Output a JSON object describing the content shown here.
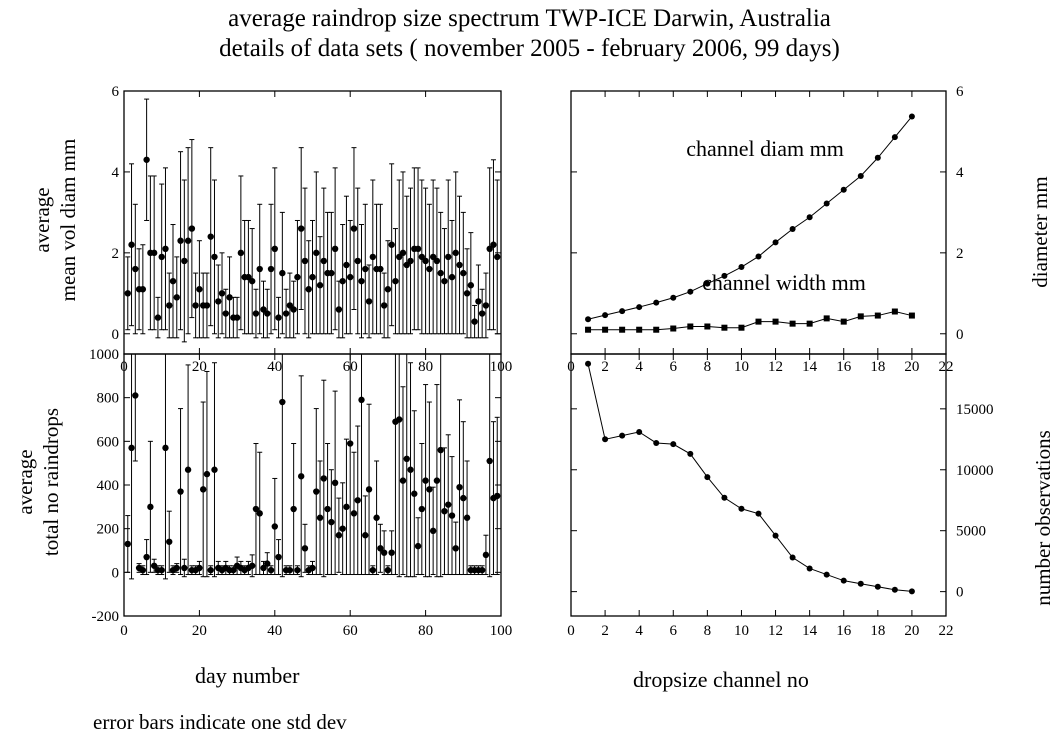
{
  "title_line1": "average raindrop size spectrum TWP-ICE Darwin, Australia",
  "title_line2": "details of data sets ( november 2005 - february 2006, 99 days)",
  "footnote": "error bars indicate one std dev",
  "chart_data": [
    {
      "type": "scatter",
      "panel": "top-left",
      "ylabel_line1": "average",
      "ylabel_line2": "mean vol diam mm",
      "xlim": [
        0,
        100
      ],
      "ylim": [
        -0.5,
        6
      ],
      "xticks": [
        0,
        20,
        40,
        60,
        80,
        100
      ],
      "yticks": [
        0,
        2,
        4,
        6
      ],
      "error_bars": true,
      "x": [
        1,
        2,
        3,
        4,
        5,
        6,
        7,
        8,
        9,
        10,
        11,
        12,
        13,
        14,
        15,
        16,
        17,
        18,
        19,
        20,
        21,
        22,
        23,
        24,
        25,
        26,
        27,
        28,
        29,
        30,
        31,
        32,
        33,
        34,
        35,
        36,
        37,
        38,
        39,
        40,
        41,
        42,
        43,
        44,
        45,
        46,
        47,
        48,
        49,
        50,
        51,
        52,
        53,
        54,
        55,
        56,
        57,
        58,
        59,
        60,
        61,
        62,
        63,
        64,
        65,
        66,
        67,
        68,
        69,
        70,
        71,
        72,
        73,
        74,
        75,
        76,
        77,
        78,
        79,
        80,
        81,
        82,
        83,
        84,
        85,
        86,
        87,
        88,
        89,
        90,
        91,
        92,
        93,
        94,
        95,
        96,
        97,
        98,
        99
      ],
      "y": [
        1.0,
        2.2,
        1.6,
        1.1,
        1.1,
        4.3,
        2.0,
        2.0,
        0.4,
        1.9,
        2.1,
        0.7,
        1.3,
        0.9,
        2.3,
        1.8,
        2.3,
        2.6,
        0.7,
        1.1,
        0.7,
        0.7,
        2.4,
        1.9,
        0.8,
        1.0,
        0.5,
        0.9,
        0.4,
        0.4,
        2.0,
        1.4,
        1.4,
        1.3,
        0.5,
        1.6,
        0.6,
        0.5,
        1.6,
        2.1,
        0.4,
        1.5,
        0.5,
        0.7,
        0.6,
        1.4,
        2.6,
        1.8,
        1.1,
        1.4,
        2.0,
        1.2,
        1.8,
        1.5,
        1.5,
        2.1,
        0.6,
        1.3,
        1.7,
        1.4,
        2.6,
        1.8,
        1.3,
        1.6,
        0.8,
        1.9,
        1.6,
        1.6,
        0.7,
        1.1,
        2.2,
        1.3,
        1.9,
        2.0,
        1.7,
        1.8,
        2.1,
        2.1,
        1.9,
        1.8,
        1.6,
        1.9,
        1.8,
        1.5,
        1.3,
        1.9,
        1.4,
        2.0,
        1.7,
        1.5,
        1.0,
        1.2,
        0.3,
        0.8,
        0.5,
        0.7,
        2.1,
        2.2,
        1.9
      ],
      "err": [
        0.9,
        2.0,
        1.6,
        1.0,
        1.1,
        1.5,
        1.9,
        1.9,
        0.5,
        1.8,
        2.0,
        0.8,
        1.4,
        1.0,
        2.2,
        2.0,
        2.3,
        2.2,
        0.8,
        1.2,
        0.8,
        0.8,
        2.2,
        1.9,
        0.9,
        1.0,
        0.6,
        1.0,
        0.5,
        0.5,
        1.9,
        1.4,
        1.4,
        1.3,
        0.6,
        1.6,
        0.7,
        0.6,
        1.6,
        2.0,
        0.5,
        1.5,
        0.6,
        0.8,
        0.7,
        1.4,
        2.0,
        1.8,
        1.2,
        1.4,
        2.0,
        1.2,
        1.8,
        1.5,
        1.5,
        2.0,
        0.7,
        1.4,
        1.7,
        1.4,
        2.0,
        1.8,
        1.4,
        1.6,
        0.9,
        1.9,
        1.6,
        1.6,
        0.8,
        1.2,
        2.0,
        1.3,
        1.9,
        2.0,
        1.7,
        1.8,
        2.0,
        2.0,
        1.9,
        1.8,
        1.6,
        1.9,
        1.8,
        1.5,
        1.3,
        1.9,
        1.4,
        2.0,
        1.7,
        1.5,
        1.1,
        1.3,
        0.4,
        0.9,
        0.6,
        0.8,
        2.0,
        2.1,
        1.9
      ]
    },
    {
      "type": "scatter",
      "panel": "bottom-left",
      "xlabel": "day number",
      "ylabel_line1": "average",
      "ylabel_line2": "total no  raindrops",
      "xlim": [
        0,
        100
      ],
      "ylim": [
        -200,
        1000
      ],
      "xticks": [
        0,
        20,
        40,
        60,
        80,
        100
      ],
      "yticks": [
        -200,
        0,
        200,
        400,
        600,
        800,
        1000
      ],
      "error_bars": true,
      "x": [
        1,
        2,
        3,
        4,
        5,
        6,
        7,
        8,
        9,
        10,
        11,
        12,
        13,
        14,
        15,
        16,
        17,
        18,
        19,
        20,
        21,
        22,
        23,
        24,
        25,
        26,
        27,
        28,
        29,
        30,
        31,
        32,
        33,
        34,
        35,
        36,
        37,
        38,
        39,
        40,
        41,
        42,
        43,
        44,
        45,
        46,
        47,
        48,
        49,
        50,
        51,
        52,
        53,
        54,
        55,
        56,
        57,
        58,
        59,
        60,
        61,
        62,
        63,
        64,
        65,
        66,
        67,
        68,
        69,
        70,
        71,
        72,
        73,
        74,
        75,
        76,
        77,
        78,
        79,
        80,
        81,
        82,
        83,
        84,
        85,
        86,
        87,
        88,
        89,
        90,
        91,
        92,
        93,
        94,
        95,
        96,
        97,
        98,
        99
      ],
      "y": [
        130,
        570,
        810,
        20,
        10,
        70,
        300,
        30,
        10,
        10,
        570,
        140,
        10,
        20,
        370,
        20,
        470,
        10,
        10,
        20,
        380,
        450,
        10,
        470,
        20,
        10,
        20,
        10,
        10,
        30,
        20,
        10,
        20,
        30,
        290,
        270,
        20,
        40,
        10,
        210,
        70,
        780,
        10,
        10,
        290,
        10,
        440,
        110,
        10,
        20,
        370,
        250,
        430,
        290,
        230,
        410,
        170,
        200,
        300,
        590,
        270,
        330,
        790,
        170,
        380,
        10,
        250,
        110,
        90,
        10,
        90,
        690,
        700,
        420,
        520,
        470,
        360,
        120,
        290,
        420,
        380,
        190,
        420,
        560,
        280,
        310,
        260,
        110,
        390,
        340,
        250,
        10,
        10,
        10,
        10,
        80,
        510,
        340,
        350
      ],
      "err": [
        130,
        600,
        300,
        20,
        20,
        80,
        300,
        30,
        20,
        20,
        600,
        140,
        20,
        20,
        380,
        40,
        480,
        20,
        20,
        30,
        400,
        470,
        20,
        490,
        30,
        20,
        30,
        20,
        20,
        40,
        30,
        20,
        30,
        50,
        300,
        280,
        30,
        50,
        20,
        220,
        80,
        800,
        20,
        20,
        300,
        20,
        460,
        110,
        20,
        30,
        380,
        260,
        450,
        300,
        240,
        420,
        170,
        210,
        310,
        600,
        280,
        340,
        800,
        180,
        390,
        20,
        260,
        110,
        100,
        20,
        100,
        700,
        720,
        430,
        540,
        490,
        380,
        130,
        300,
        440,
        400,
        200,
        440,
        580,
        290,
        320,
        270,
        120,
        400,
        350,
        260,
        20,
        20,
        20,
        20,
        90,
        530,
        350,
        360
      ]
    },
    {
      "type": "line",
      "panel": "top-right",
      "ylabel": "diameter mm",
      "xlim": [
        0,
        22
      ],
      "ylim": [
        -0.5,
        6
      ],
      "xticks": [
        0,
        2,
        4,
        6,
        8,
        10,
        12,
        14,
        16,
        18,
        20,
        22
      ],
      "yticks": [
        0,
        2,
        4,
        6
      ],
      "series": [
        {
          "name": "channel diam mm",
          "marker": "circle",
          "x": [
            1,
            2,
            3,
            4,
            5,
            6,
            7,
            8,
            9,
            10,
            11,
            12,
            13,
            14,
            15,
            16,
            17,
            18,
            19,
            20
          ],
          "values": [
            0.36,
            0.46,
            0.56,
            0.66,
            0.77,
            0.89,
            1.04,
            1.24,
            1.43,
            1.65,
            1.91,
            2.26,
            2.59,
            2.88,
            3.22,
            3.56,
            3.9,
            4.35,
            4.86,
            5.37
          ]
        },
        {
          "name": "channel width mm",
          "marker": "square",
          "x": [
            1,
            2,
            3,
            4,
            5,
            6,
            7,
            8,
            9,
            10,
            11,
            12,
            13,
            14,
            15,
            16,
            17,
            18,
            19,
            20
          ],
          "values": [
            0.1,
            0.1,
            0.1,
            0.1,
            0.1,
            0.13,
            0.18,
            0.18,
            0.15,
            0.15,
            0.3,
            0.3,
            0.25,
            0.25,
            0.38,
            0.3,
            0.43,
            0.45,
            0.55,
            0.45
          ]
        }
      ]
    },
    {
      "type": "line",
      "panel": "bottom-right",
      "xlabel": "dropsize channel no",
      "ylabel": "number observations",
      "xlim": [
        0,
        22
      ],
      "ylim": [
        -2000,
        19500
      ],
      "xticks": [
        0,
        2,
        4,
        6,
        8,
        10,
        12,
        14,
        16,
        18,
        20,
        22
      ],
      "yticks": [
        0,
        5000,
        10000,
        15000
      ],
      "series": [
        {
          "marker": "circle",
          "x": [
            1,
            2,
            3,
            4,
            5,
            6,
            7,
            8,
            9,
            10,
            11,
            12,
            13,
            14,
            15,
            16,
            17,
            18,
            19,
            20
          ],
          "values": [
            18700,
            12500,
            12800,
            13100,
            12200,
            12100,
            11300,
            9400,
            7700,
            6800,
            6400,
            4600,
            2800,
            1900,
            1400,
            900,
            650,
            400,
            150,
            20
          ]
        }
      ]
    }
  ]
}
